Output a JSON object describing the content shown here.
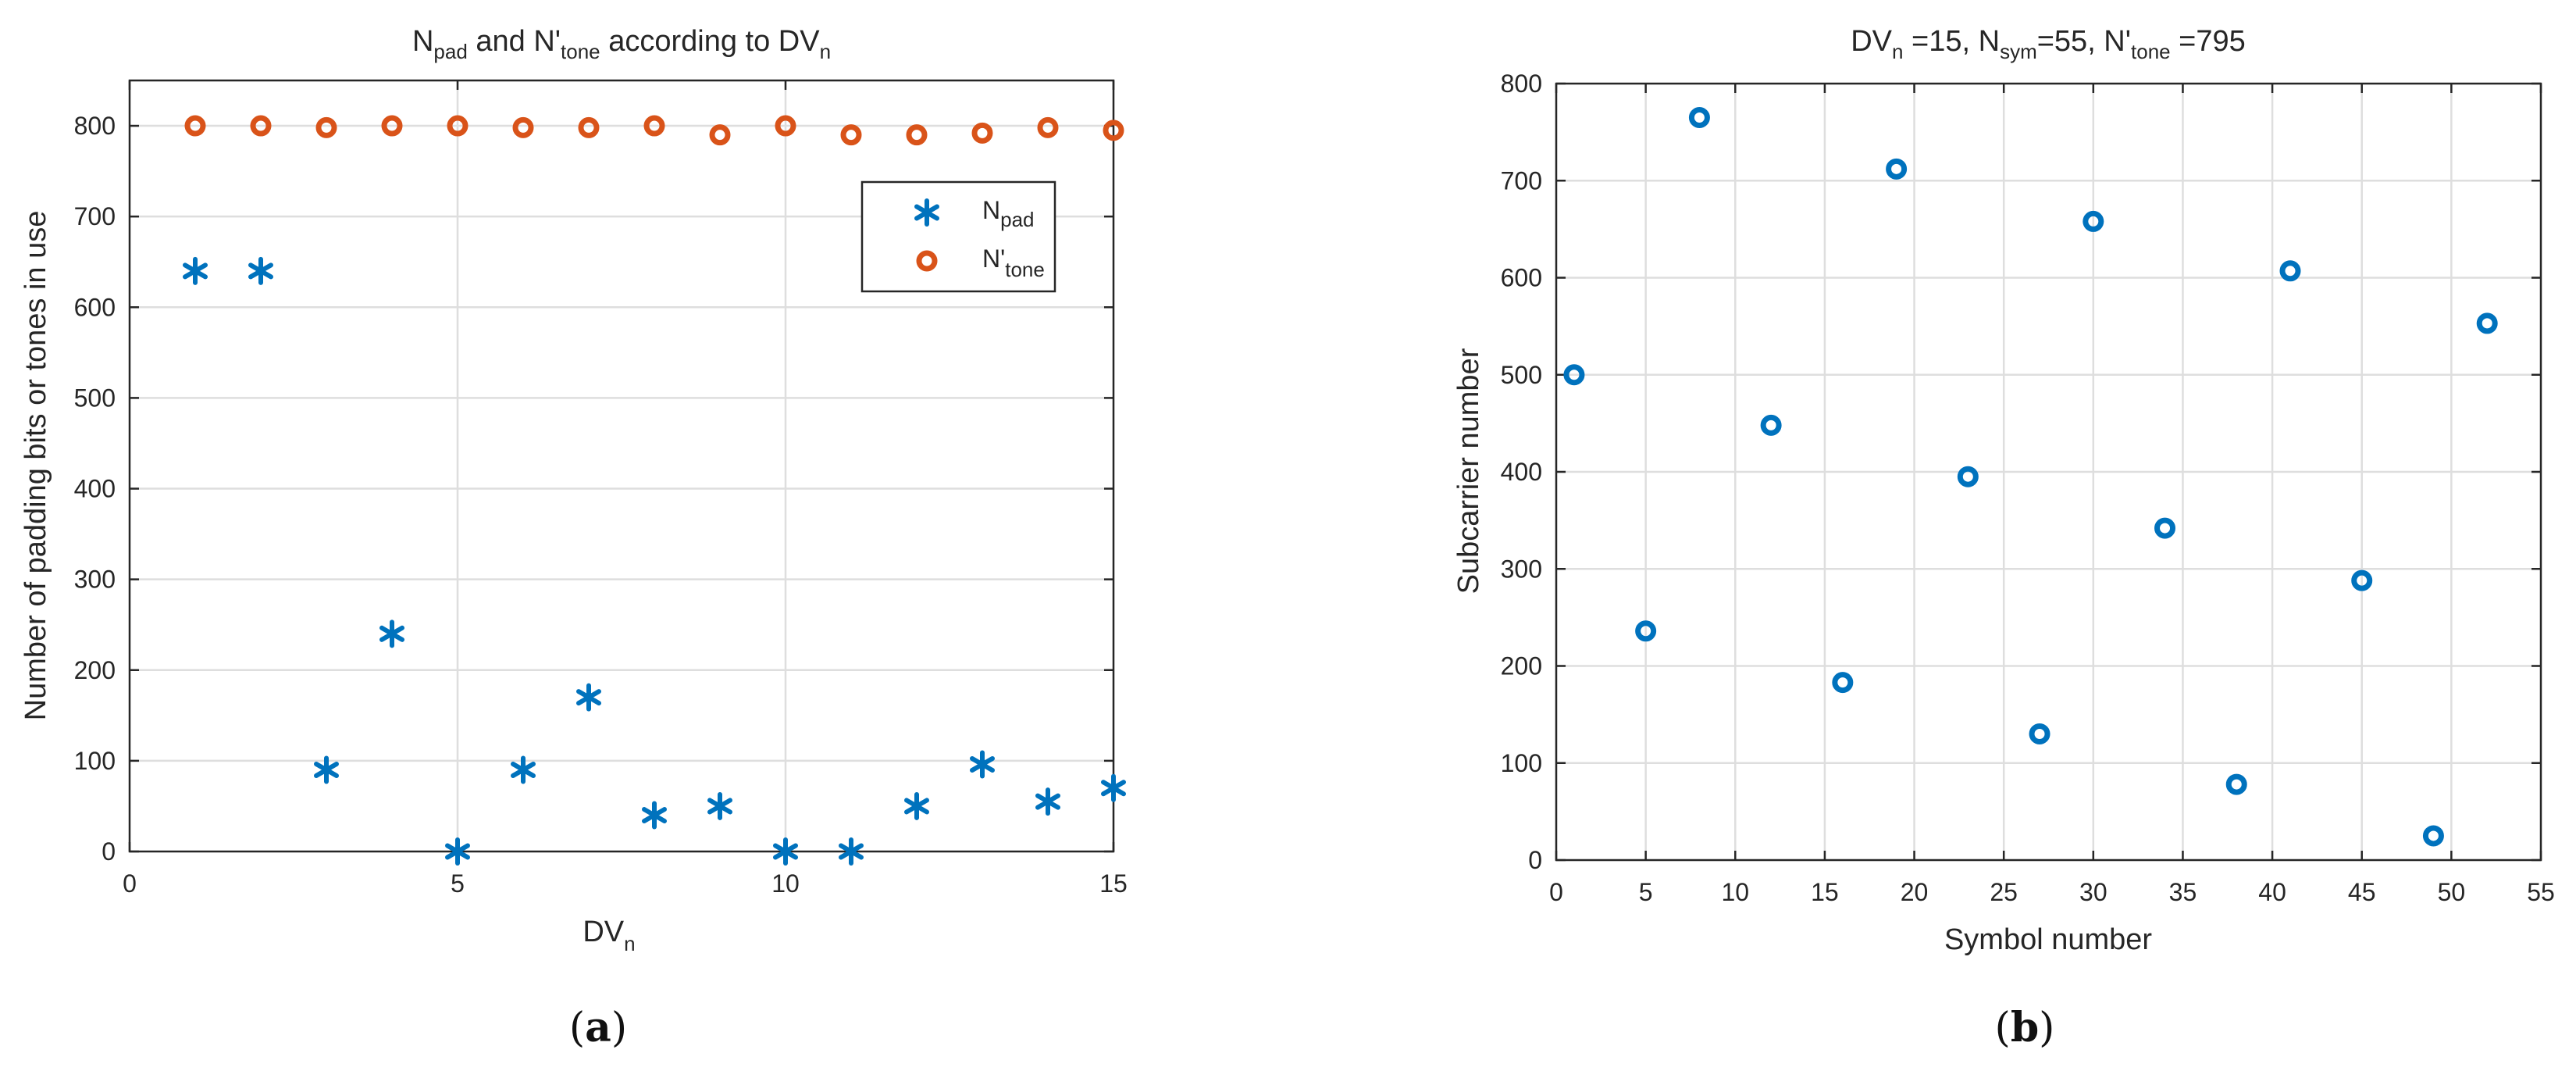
{
  "chart_data": [
    {
      "type": "scatter",
      "panel_label": "a",
      "title": {
        "main": "N",
        "main_sub": "pad",
        "mid": " and N'",
        "mid_sub": "tone",
        "end": " according to DV",
        "end_sub": "n"
      },
      "xlabel": {
        "main": "DV",
        "sub": "n"
      },
      "ylabel": "Number of padding bits or tones in use",
      "xlim": [
        0,
        15
      ],
      "ylim": [
        0,
        850
      ],
      "xticks": [
        0,
        5,
        10,
        15
      ],
      "yticks": [
        0,
        100,
        200,
        300,
        400,
        500,
        600,
        700,
        800
      ],
      "grid": true,
      "legend": {
        "placement": "top-right",
        "entries": [
          {
            "main": "N",
            "sub": "pad",
            "marker": "asterisk",
            "color": "#0072BD"
          },
          {
            "main": "N'",
            "sub": "tone",
            "marker": "circle",
            "color": "#D95319"
          }
        ]
      },
      "series": [
        {
          "name": "N_pad",
          "marker": "asterisk",
          "color": "#0072BD",
          "x": [
            1,
            2,
            3,
            4,
            5,
            6,
            7,
            8,
            9,
            10,
            11,
            12,
            13,
            14,
            15
          ],
          "y": [
            640,
            640,
            90,
            240,
            0,
            90,
            170,
            40,
            50,
            0,
            0,
            50,
            96,
            55,
            70
          ]
        },
        {
          "name": "N'_tone",
          "marker": "circle",
          "color": "#D95319",
          "x": [
            1,
            2,
            3,
            4,
            5,
            6,
            7,
            8,
            9,
            10,
            11,
            12,
            13,
            14,
            15
          ],
          "y": [
            800,
            800,
            798,
            800,
            800,
            798,
            798,
            800,
            790,
            800,
            790,
            790,
            792,
            798,
            795
          ]
        }
      ]
    },
    {
      "type": "scatter",
      "panel_label": "b",
      "title": {
        "a": "DV",
        "a_sub": "n",
        "b": " =15, N",
        "b_sub": "sym",
        "c": "=55, N'",
        "c_sub": "tone",
        "d": " =795"
      },
      "xlabel": "Symbol number",
      "ylabel": "Subcarrier number",
      "xlim": [
        0,
        55
      ],
      "ylim": [
        0,
        800
      ],
      "xticks": [
        0,
        5,
        10,
        15,
        20,
        25,
        30,
        35,
        40,
        45,
        50,
        55
      ],
      "yticks": [
        0,
        100,
        200,
        300,
        400,
        500,
        600,
        700,
        800
      ],
      "grid": true,
      "series": [
        {
          "name": "subcarrier",
          "marker": "circle",
          "color": "#0072BD",
          "x": [
            1,
            5,
            8,
            12,
            16,
            19,
            23,
            27,
            30,
            34,
            38,
            41,
            45,
            49,
            52
          ],
          "y": [
            500,
            236,
            765,
            448,
            183,
            712,
            395,
            130,
            658,
            342,
            78,
            607,
            288,
            25,
            553
          ]
        }
      ]
    }
  ],
  "captions": [
    "(",
    "a",
    ")",
    "(",
    "b",
    ")"
  ]
}
